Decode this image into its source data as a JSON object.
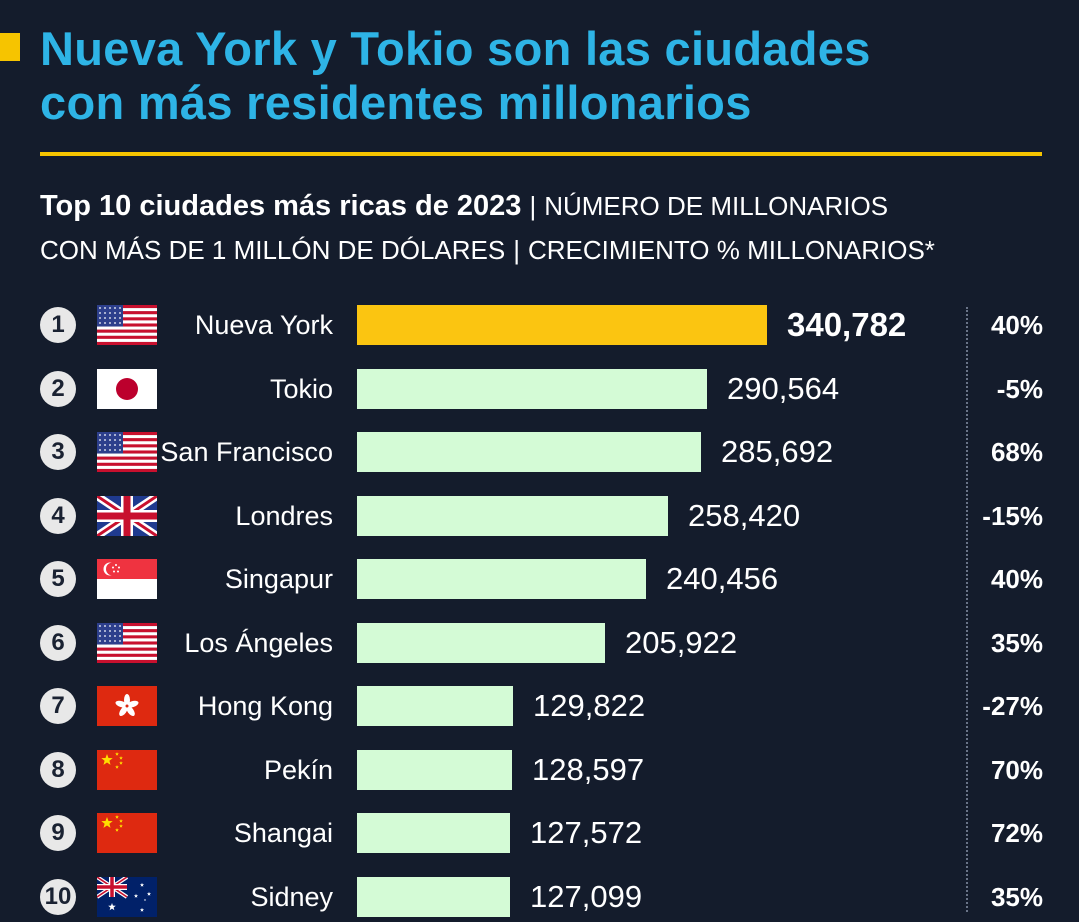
{
  "colors": {
    "background": "#141c2c",
    "title": "#2eb4e6",
    "accent": "#f6c400",
    "bar_default": "#d4fbd6",
    "bar_highlight": "#fbc511"
  },
  "header": {
    "title_line1": "Nueva York y Tokio son las ciudades",
    "title_line2": "con más residentes millonarios",
    "subtitle_bold": "Top 10 ciudades más ricas de 2023",
    "subtitle_sep": "|",
    "subtitle_part1": "NÚMERO DE MILLONARIOS",
    "subtitle_part2": "CON MÁS DE 1 MILLÓN DE DÓLARES",
    "subtitle_part3": "CRECIMIENTO % MILLONARIOS*"
  },
  "chart_data": {
    "type": "bar",
    "orientation": "horizontal",
    "title": "Top 10 ciudades más ricas de 2023",
    "ylim": [
      0,
      340782
    ],
    "categories": [
      "Nueva York",
      "Tokio",
      "San Francisco",
      "Londres",
      "Singapur",
      "Los Ángeles",
      "Hong Kong",
      "Pekín",
      "Shangai",
      "Sidney"
    ],
    "values": [
      340782,
      290564,
      285692,
      258420,
      240456,
      205922,
      129822,
      128597,
      127572,
      127099
    ],
    "value_labels": [
      "340,782",
      "290,564",
      "285,692",
      "258,420",
      "240,456",
      "205,922",
      "129,822",
      "128,597",
      "127,572",
      "127,099"
    ],
    "growth_labels": [
      "40%",
      "-5%",
      "68%",
      "-15%",
      "40%",
      "35%",
      "-27%",
      "70%",
      "72%",
      "35%"
    ],
    "ranks": [
      "1",
      "2",
      "3",
      "4",
      "5",
      "6",
      "7",
      "8",
      "9",
      "10"
    ],
    "flags": [
      "us-flag-icon",
      "japan-flag-icon",
      "us-flag-icon",
      "uk-flag-icon",
      "singapore-flag-icon",
      "us-flag-icon",
      "hong-kong-flag-icon",
      "china-flag-icon",
      "china-flag-icon",
      "australia-flag-icon"
    ]
  }
}
